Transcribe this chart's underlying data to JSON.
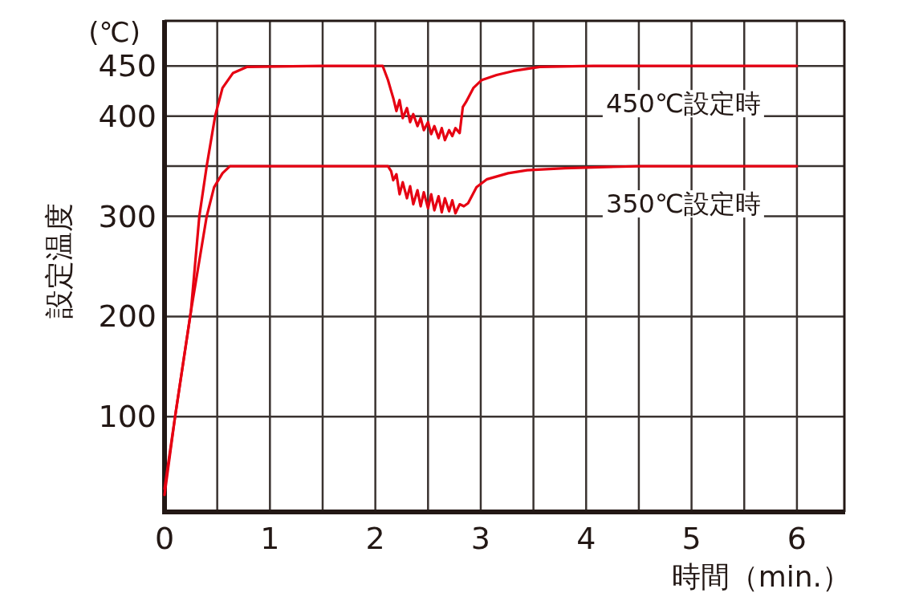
{
  "chart_data": {
    "type": "line",
    "xlabel": "時間（min.）",
    "ylabel": "設定温度",
    "annotations": [
      "(℃)"
    ],
    "xlim": [
      0,
      6.45
    ],
    "ylim": [
      5,
      495
    ],
    "xticks": [
      0,
      {
        "value": 0.5,
        "label": null
      },
      1,
      {
        "value": 1.5,
        "label": null
      },
      2,
      {
        "value": 2.5,
        "label": null
      },
      3,
      {
        "value": 3.5,
        "label": null
      },
      4,
      {
        "value": 4.5,
        "label": null
      },
      5,
      {
        "value": 5.5,
        "label": null
      },
      6
    ],
    "yticks": [
      100,
      200,
      300,
      {
        "value": 350,
        "label": null
      },
      400,
      450
    ],
    "grid": true,
    "marker": "none",
    "line_style": "solid",
    "legend": false,
    "series": [
      {
        "name": "450℃設定時",
        "color": "#e60012",
        "x": [
          0,
          0.1,
          0.25,
          0.33,
          0.4,
          0.48,
          0.55,
          0.65,
          0.78,
          1.5,
          2.07,
          2.12,
          2.15,
          2.17,
          2.2,
          2.23,
          2.26,
          2.3,
          2.33,
          2.36,
          2.4,
          2.43,
          2.46,
          2.5,
          2.53,
          2.56,
          2.6,
          2.63,
          2.66,
          2.7,
          2.73,
          2.76,
          2.8,
          2.83,
          2.86,
          2.93,
          3.01,
          3.15,
          3.31,
          3.56,
          4.07,
          5,
          6
        ],
        "values": [
          28,
          100,
          205,
          300,
          350,
          400,
          428,
          443,
          449,
          450,
          450,
          436,
          425,
          418,
          405,
          416,
          398,
          408,
          394,
          402,
          390,
          398,
          386,
          394,
          382,
          390,
          378,
          388,
          376,
          386,
          380,
          388,
          383,
          409,
          414,
          428,
          436,
          441,
          445,
          449,
          450,
          450,
          450
        ]
      },
      {
        "name": "350℃設定時",
        "color": "#e60012",
        "x": [
          0,
          0.1,
          0.25,
          0.4,
          0.47,
          0.55,
          0.62,
          1.5,
          2.12,
          2.15,
          2.17,
          2.2,
          2.23,
          2.26,
          2.3,
          2.33,
          2.36,
          2.4,
          2.43,
          2.46,
          2.5,
          2.53,
          2.56,
          2.6,
          2.63,
          2.66,
          2.7,
          2.73,
          2.76,
          2.8,
          2.84,
          2.88,
          2.96,
          3.06,
          3.26,
          3.44,
          3.8,
          4.5,
          6
        ],
        "values": [
          22,
          100,
          205,
          300,
          329,
          343,
          350,
          350,
          350,
          345,
          336,
          342,
          322,
          334,
          318,
          330,
          312,
          326,
          310,
          324,
          308,
          322,
          306,
          320,
          304,
          318,
          305,
          316,
          303,
          312,
          310,
          313,
          329,
          337,
          343,
          346,
          348,
          350,
          350
        ]
      }
    ]
  }
}
